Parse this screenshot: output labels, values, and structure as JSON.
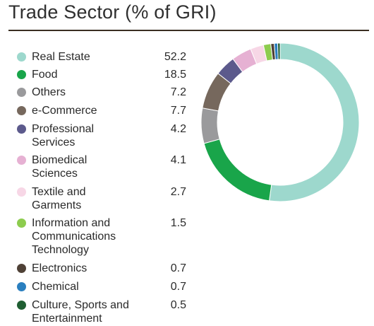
{
  "title": "Trade Sector (% of GRI)",
  "chart_data": {
    "type": "pie",
    "title": "Trade Sector (% of GRI)",
    "legend_position": "left",
    "slices": [
      {
        "label": "Real Estate",
        "value": 52.2,
        "value_text": "52.2",
        "color": "#9dd8cd"
      },
      {
        "label": "Food",
        "value": 18.5,
        "value_text": "18.5",
        "color": "#19a54a"
      },
      {
        "label": "Others",
        "value": 7.2,
        "value_text": "7.2",
        "color": "#9a9a9c"
      },
      {
        "label": "e-Commerce",
        "value": 7.7,
        "value_text": "7.7",
        "color": "#76685d"
      },
      {
        "label": "Professional Services",
        "value": 4.2,
        "value_text": "4.2",
        "color": "#5c5a8c"
      },
      {
        "label": "Biomedical Sciences",
        "value": 4.1,
        "value_text": "4.1",
        "color": "#e6b1d3"
      },
      {
        "label": "Textile and Garments",
        "value": 2.7,
        "value_text": "2.7",
        "color": "#f7d7e6"
      },
      {
        "label": "Information and Communications Technology",
        "value": 1.5,
        "value_text": "1.5",
        "color": "#8dcc4e"
      },
      {
        "label": "Electronics",
        "value": 0.7,
        "value_text": "0.7",
        "color": "#4f4136"
      },
      {
        "label": "Chemical",
        "value": 0.7,
        "value_text": "0.7",
        "color": "#2a7fbf"
      },
      {
        "label": "Culture, Sports and Entertainment",
        "value": 0.5,
        "value_text": "0.5",
        "color": "#1f5e32"
      }
    ]
  }
}
